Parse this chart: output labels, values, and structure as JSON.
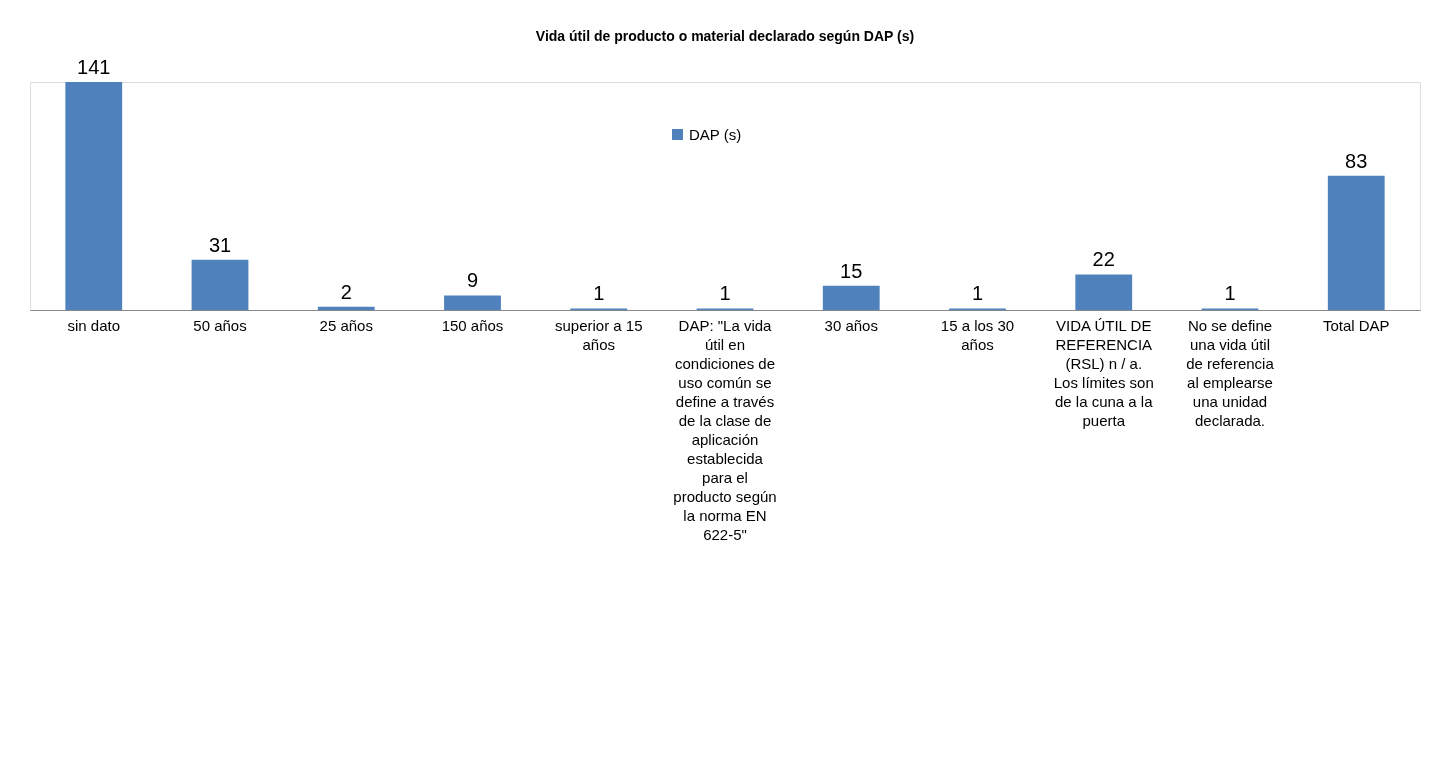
{
  "chart_data": {
    "type": "bar",
    "title": "Vida útil de producto o material declarado según DAP (s)",
    "categories": [
      "sin dato",
      "50 años",
      "25 años",
      "150 años",
      "superior a 15 años",
      "DAP: \"La vida útil en condiciones de uso común se define a través de la clase de aplicación establecida para el producto según la norma EN 622-5\"",
      "30 años",
      "15 a los 30 años",
      "VIDA ÚTIL DE REFERENCIA (RSL) n / a. Los límites son de la cuna a la puerta",
      "No se define una vida útil de referencia al emplearse una unidad declarada.",
      "Total DAP"
    ],
    "series": [
      {
        "name": "DAP (s)",
        "color": "#4f81bd",
        "values": [
          141,
          31,
          2,
          9,
          1,
          1,
          15,
          1,
          22,
          1,
          83
        ]
      }
    ],
    "data_labels": true,
    "legend": "top",
    "grid": false
  }
}
